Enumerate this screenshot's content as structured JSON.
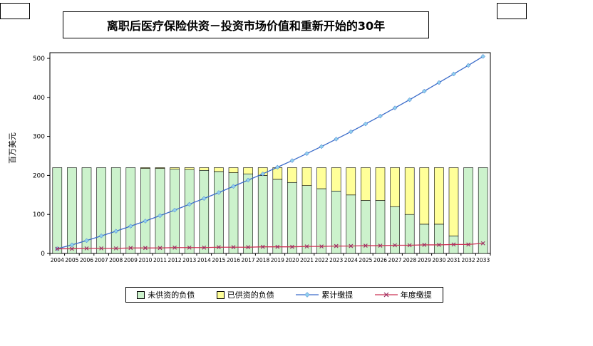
{
  "decorations": {
    "top_left_box": "",
    "top_right_box": ""
  },
  "chart_data": {
    "type": "combo",
    "title": "离职后医疗保险供资－投资市场价值和重新开始的30年",
    "ylabel": "百万美元",
    "ylim": [
      0,
      500
    ],
    "ytick_step": 100,
    "grid": false,
    "legend_position": "bottom",
    "categories": [
      2004,
      2005,
      2006,
      2007,
      2008,
      2009,
      2010,
      2011,
      2012,
      2013,
      2014,
      2015,
      2016,
      2017,
      2018,
      2019,
      2020,
      2021,
      2022,
      2023,
      2024,
      2025,
      2026,
      2027,
      2028,
      2029,
      2030,
      2031,
      2032,
      2033
    ],
    "series": [
      {
        "name": "未供资的负债",
        "type": "bar",
        "stack": true,
        "color": "#CCF2CC",
        "values": [
          220,
          220,
          220,
          220,
          220,
          220,
          218,
          218,
          216,
          215,
          213,
          210,
          207,
          204,
          200,
          190,
          182,
          174,
          166,
          160,
          150,
          136,
          136,
          120,
          100,
          75,
          75,
          45,
          220,
          220
        ]
      },
      {
        "name": "已供资的负债",
        "type": "bar",
        "stack": true,
        "color": "#FFFF99",
        "values": [
          0,
          0,
          0,
          0,
          0,
          0,
          2,
          2,
          4,
          5,
          7,
          10,
          13,
          16,
          20,
          30,
          38,
          46,
          54,
          60,
          70,
          84,
          84,
          100,
          120,
          145,
          145,
          175,
          0,
          0
        ]
      },
      {
        "name": "累计缴提",
        "type": "line",
        "marker": "diamond",
        "color": "#3A6BC9",
        "marker_color": "#8FD0EE",
        "values": [
          12,
          22,
          33,
          45,
          57,
          70,
          83,
          97,
          111,
          126,
          141,
          156,
          172,
          188,
          204,
          221,
          238,
          256,
          274,
          293,
          312,
          332,
          352,
          373,
          394,
          416,
          438,
          460,
          482,
          505
        ]
      },
      {
        "name": "年度缴提",
        "type": "line",
        "marker": "x",
        "color": "#CC3355",
        "marker_color": "#993366",
        "values": [
          12,
          12,
          13,
          13,
          13,
          14,
          14,
          14,
          15,
          15,
          15,
          16,
          16,
          16,
          17,
          17,
          17,
          18,
          18,
          19,
          19,
          20,
          20,
          21,
          21,
          22,
          22,
          23,
          23,
          26
        ]
      }
    ]
  }
}
